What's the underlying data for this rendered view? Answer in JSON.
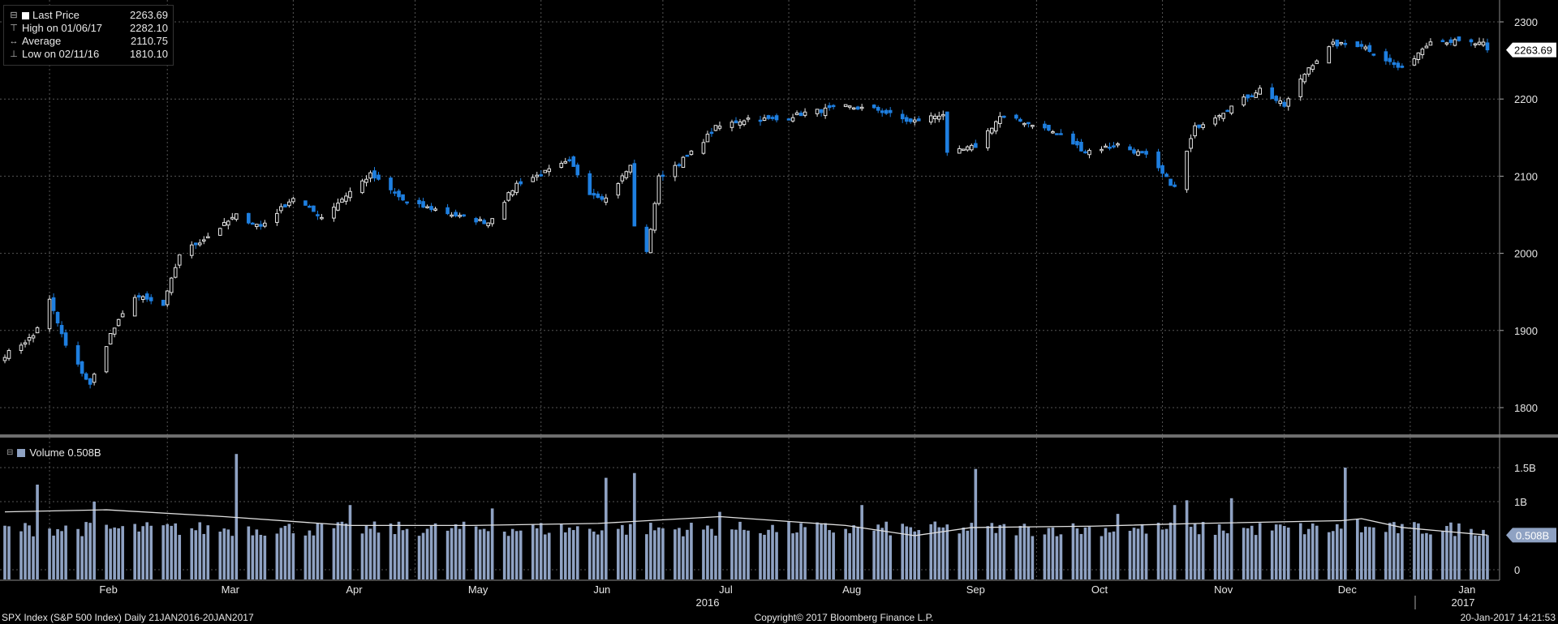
{
  "legend": {
    "last_price_label": "Last Price",
    "last_price_value": "2263.69",
    "high_label": "High on 01/06/17",
    "high_value": "2282.10",
    "average_label": "Average",
    "average_value": "2110.75",
    "low_label": "Low on 02/11/16",
    "low_value": "1810.10"
  },
  "volume_legend": {
    "label": "Volume 0.508B"
  },
  "last_price_tag": "2263.69",
  "last_volume_tag": "0.508B",
  "footer": {
    "left": "SPX Index (S&P 500 Index)  Daily 21JAN2016-20JAN2017",
    "center": "Copyright© 2017 Bloomberg Finance L.P.",
    "right": "20-Jan-2017 14:21:53"
  },
  "colors": {
    "up_fill": "#000000",
    "up_stroke": "#e6e6e6",
    "down_fill": "#1e7fe0",
    "volume_bar": "#8fa2c3",
    "avg_line": "#e0e0e0",
    "grid": "#555555",
    "background": "#000000"
  },
  "chart_data": [
    {
      "type": "candlestick",
      "title": "SPX Index (S&P 500 Index)",
      "x_tick_labels": [
        "Feb",
        "Mar",
        "Apr",
        "May",
        "Jun",
        "Jul",
        "Aug",
        "Sep",
        "Oct",
        "Nov",
        "Dec",
        "Jan"
      ],
      "year_labels": [
        "2016",
        "2017"
      ],
      "y_ticks": [
        1800,
        1900,
        2000,
        2100,
        2200,
        2300
      ],
      "ylim": [
        1768,
        2325
      ],
      "grid": true,
      "price_anchors": [
        [
          "2016-01-21",
          1868
        ],
        [
          "2016-01-28",
          1893
        ],
        [
          "2016-02-01",
          1939
        ],
        [
          "2016-02-05",
          1880
        ],
        [
          "2016-02-11",
          1829
        ],
        [
          "2016-02-16",
          1895
        ],
        [
          "2016-02-22",
          1945
        ],
        [
          "2016-02-29",
          1932
        ],
        [
          "2016-03-04",
          1999
        ],
        [
          "2016-03-11",
          2022
        ],
        [
          "2016-03-18",
          2049
        ],
        [
          "2016-03-24",
          2035
        ],
        [
          "2016-04-01",
          2072
        ],
        [
          "2016-04-08",
          2047
        ],
        [
          "2016-04-15",
          2080
        ],
        [
          "2016-04-20",
          2102
        ],
        [
          "2016-04-29",
          2065
        ],
        [
          "2016-05-06",
          2057
        ],
        [
          "2016-05-13",
          2046
        ],
        [
          "2016-05-19",
          2040
        ],
        [
          "2016-05-26",
          2090
        ],
        [
          "2016-06-02",
          2105
        ],
        [
          "2016-06-08",
          2119
        ],
        [
          "2016-06-13",
          2079
        ],
        [
          "2016-06-17",
          2071
        ],
        [
          "2016-06-23",
          2113
        ],
        [
          "2016-06-24",
          2037
        ],
        [
          "2016-06-27",
          2000
        ],
        [
          "2016-06-30",
          2098
        ],
        [
          "2016-07-08",
          2130
        ],
        [
          "2016-07-14",
          2163
        ],
        [
          "2016-07-22",
          2175
        ],
        [
          "2016-07-29",
          2173
        ],
        [
          "2016-08-05",
          2182
        ],
        [
          "2016-08-15",
          2190
        ],
        [
          "2016-08-23",
          2186
        ],
        [
          "2016-08-31",
          2170
        ],
        [
          "2016-09-08",
          2181
        ],
        [
          "2016-09-09",
          2128
        ],
        [
          "2016-09-16",
          2139
        ],
        [
          "2016-09-22",
          2177
        ],
        [
          "2016-09-30",
          2168
        ],
        [
          "2016-10-07",
          2153
        ],
        [
          "2016-10-13",
          2132
        ],
        [
          "2016-10-21",
          2141
        ],
        [
          "2016-10-28",
          2126
        ],
        [
          "2016-11-04",
          2085
        ],
        [
          "2016-11-09",
          2163
        ],
        [
          "2016-11-17",
          2187
        ],
        [
          "2016-11-25",
          2213
        ],
        [
          "2016-12-01",
          2191
        ],
        [
          "2016-12-07",
          2241
        ],
        [
          "2016-12-13",
          2271
        ],
        [
          "2016-12-20",
          2270
        ],
        [
          "2016-12-30",
          2238
        ],
        [
          "2017-01-06",
          2277
        ],
        [
          "2017-01-13",
          2274
        ],
        [
          "2017-01-19",
          2271
        ],
        [
          "2017-01-20",
          2263.69
        ]
      ],
      "last_price": 2263.69,
      "high": {
        "date": "2017-01-06",
        "value": 2282.1
      },
      "low": {
        "date": "2016-02-11",
        "value": 1810.1
      },
      "average": 2110.75
    },
    {
      "type": "bar",
      "title": "Volume",
      "y_ticks": [
        0,
        1,
        1.5
      ],
      "y_tick_labels": [
        "0",
        "1B",
        "1.5B"
      ],
      "ylim": [
        0,
        1.75
      ],
      "unit": "billion shares",
      "typical_volume": 0.6,
      "spikes": [
        [
          "2016-01-29",
          1.25
        ],
        [
          "2016-02-12",
          1.0
        ],
        [
          "2016-03-18",
          1.7
        ],
        [
          "2016-04-15",
          0.95
        ],
        [
          "2016-05-20",
          0.9
        ],
        [
          "2016-06-17",
          1.35
        ],
        [
          "2016-06-24",
          1.42
        ],
        [
          "2016-07-15",
          0.85
        ],
        [
          "2016-08-19",
          0.95
        ],
        [
          "2016-09-16",
          1.48
        ],
        [
          "2016-10-21",
          0.82
        ],
        [
          "2016-11-04",
          0.95
        ],
        [
          "2016-11-07",
          1.02
        ],
        [
          "2016-11-18",
          1.05
        ],
        [
          "2016-12-16",
          1.5
        ],
        [
          "2016-12-19",
          0.75
        ]
      ],
      "moving_average": [
        [
          "2016-01-21",
          0.85
        ],
        [
          "2016-02-15",
          0.88
        ],
        [
          "2016-03-15",
          0.78
        ],
        [
          "2016-04-15",
          0.65
        ],
        [
          "2016-05-15",
          0.65
        ],
        [
          "2016-06-15",
          0.68
        ],
        [
          "2016-07-15",
          0.78
        ],
        [
          "2016-08-15",
          0.65
        ],
        [
          "2016-09-01",
          0.5
        ],
        [
          "2016-09-15",
          0.62
        ],
        [
          "2016-10-15",
          0.64
        ],
        [
          "2016-11-10",
          0.68
        ],
        [
          "2016-12-15",
          0.72
        ],
        [
          "2016-12-20",
          0.75
        ],
        [
          "2016-12-30",
          0.62
        ],
        [
          "2017-01-20",
          0.508
        ]
      ],
      "last_value": 0.508
    }
  ]
}
